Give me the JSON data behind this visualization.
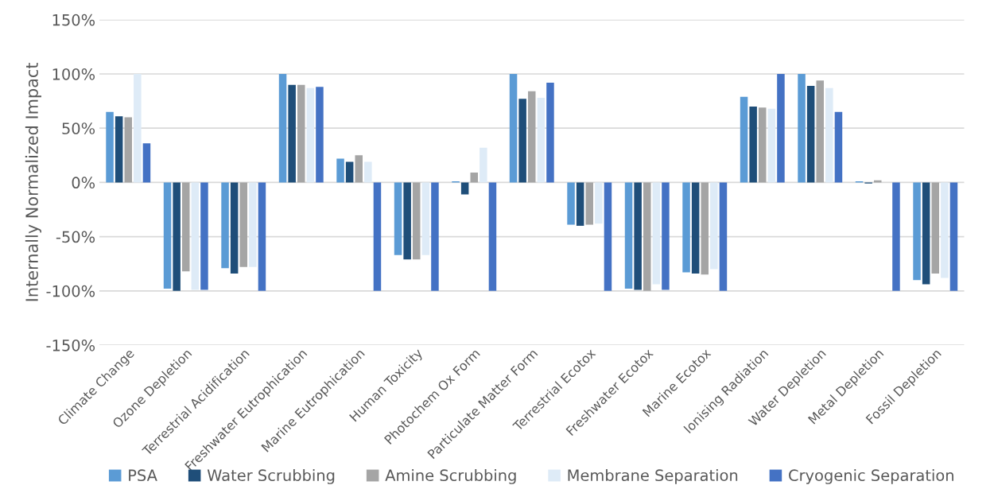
{
  "chart_data": {
    "type": "bar",
    "ylabel": "Internally Normalized Impact",
    "categories": [
      "Climate Change",
      "Ozone Depletion",
      "Terrestrial Acidification",
      "Freshwater Eutrophication",
      "Marine Eutrophication",
      "Human Toxicity",
      "Photochem Ox Form",
      "Particulate Matter Form",
      "Terrestrial Ecotox",
      "Freshwater Ecotox",
      "Marine Ecotox",
      "Ionising Radiation",
      "Water Depletion",
      "Metal Depletion",
      "Fossil Depletion"
    ],
    "series": [
      {
        "name": "PSA",
        "color": "#5b9bd5",
        "values": [
          65,
          -98,
          -79,
          100,
          22,
          -67,
          1,
          100,
          -39,
          -98,
          -83,
          79,
          100,
          1,
          -90
        ]
      },
      {
        "name": "Water Scrubbing",
        "color": "#1f4e79",
        "values": [
          61,
          -100,
          -84,
          90,
          19,
          -71,
          -11,
          77,
          -40,
          -99,
          -84,
          70,
          89,
          -1,
          -94
        ]
      },
      {
        "name": "Amine Scrubbing",
        "color": "#a5a5a5",
        "values": [
          60,
          -82,
          -78,
          90,
          25,
          -71,
          9,
          84,
          -39,
          -100,
          -85,
          69,
          94,
          2,
          -84
        ]
      },
      {
        "name": "Membrane Separation",
        "color": "#deebf7",
        "values": [
          100,
          -99,
          -78,
          87,
          19,
          -67,
          32,
          78,
          -38,
          -94,
          -80,
          68,
          87,
          0,
          -88
        ]
      },
      {
        "name": "Cryogenic Separation",
        "color": "#4472c4",
        "values": [
          36,
          -99,
          -100,
          88,
          -100,
          -100,
          -100,
          92,
          -100,
          -99,
          -100,
          100,
          65,
          -100,
          -100
        ]
      }
    ],
    "ylim": [
      -150,
      150
    ],
    "yticks": [
      {
        "value": -150,
        "label": "-150%"
      },
      {
        "value": -100,
        "label": "-100%"
      },
      {
        "value": -50,
        "label": "-50%"
      },
      {
        "value": 0,
        "label": "0%"
      },
      {
        "value": 50,
        "label": "50%"
      },
      {
        "value": 100,
        "label": "100%"
      },
      {
        "value": 150,
        "label": "150%"
      }
    ],
    "grid": "y",
    "legend": "bottom"
  }
}
